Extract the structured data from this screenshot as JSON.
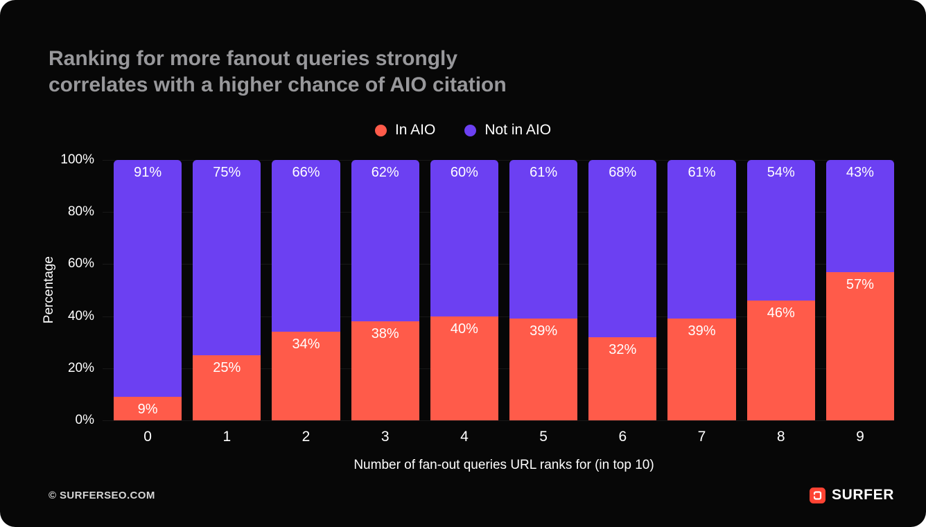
{
  "header": {
    "title_line1": "Ranking for more fanout queries strongly",
    "title_line2": "correlates with a higher chance of AIO citation"
  },
  "footer": {
    "copyright": "© SURFERSEO.COM",
    "brand": "SURFER"
  },
  "colors": {
    "in_aio": "#FF5B4A",
    "not_in_aio": "#6C40F2",
    "brand_red": "#FF4333",
    "panel_background": "#070707",
    "title_text": "#98989B"
  },
  "chart_data": {
    "type": "bar",
    "stacked": true,
    "title": "Ranking for more fanout queries strongly correlates with a higher chance of AIO citation",
    "categories": [
      "0",
      "1",
      "2",
      "3",
      "4",
      "5",
      "6",
      "7",
      "8",
      "9"
    ],
    "series": [
      {
        "name": "In AIO",
        "color": "#FF5B4A",
        "values": [
          9,
          25,
          34,
          38,
          40,
          39,
          32,
          39,
          46,
          57
        ]
      },
      {
        "name": "Not in AIO",
        "color": "#6C40F2",
        "values": [
          91,
          75,
          66,
          62,
          60,
          61,
          68,
          61,
          54,
          43
        ]
      }
    ],
    "xlabel": "Number of fan-out queries URL ranks for (in top 10)",
    "ylabel": "Percentage",
    "ylim": [
      0,
      100
    ],
    "yticks": [
      "100%",
      "80%",
      "60%",
      "40%",
      "20%",
      "0%"
    ],
    "legend_position": "top",
    "grid": "faint horizontal"
  }
}
